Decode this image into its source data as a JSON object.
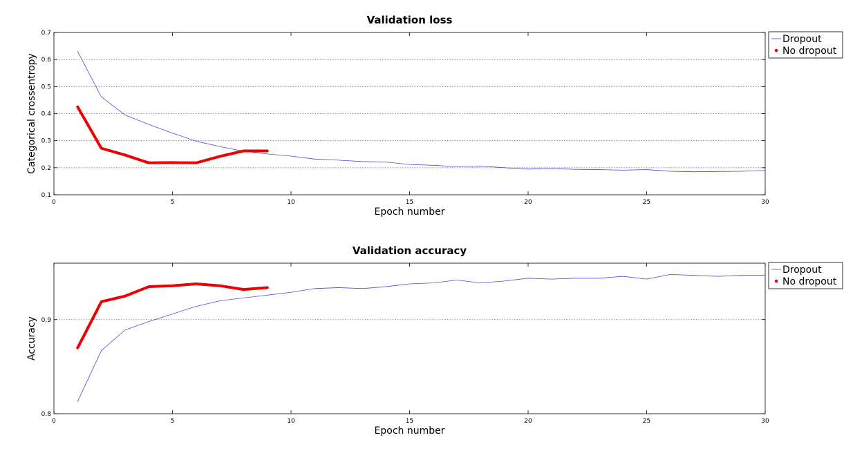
{
  "chart_data": [
    {
      "type": "line",
      "title": "Validation loss",
      "xlabel": "Epoch number",
      "ylabel": "Categorical crossentropy",
      "xlim": [
        0,
        30
      ],
      "ylim": [
        0.1,
        0.7
      ],
      "xticks": [
        0,
        5,
        10,
        15,
        20,
        25,
        30
      ],
      "yticks": [
        0.1,
        0.2,
        0.3,
        0.4,
        0.5,
        0.6,
        0.7
      ],
      "ytick_labels": [
        "0.1",
        "0.2",
        "0.3",
        "0.4",
        "0.5",
        "0.6",
        "0.7"
      ],
      "grid": "horizontal-dotted",
      "legend": "outside-top-right",
      "series": [
        {
          "name": "Dropout",
          "color": "#4a4ad8",
          "x": [
            1,
            2,
            3,
            4,
            5,
            6,
            7,
            8,
            9,
            10,
            11,
            12,
            13,
            14,
            15,
            16,
            17,
            18,
            19,
            20,
            21,
            22,
            23,
            24,
            25,
            26,
            27,
            28,
            29,
            30
          ],
          "values": [
            0.63,
            0.462,
            0.395,
            0.36,
            0.328,
            0.298,
            0.278,
            0.261,
            0.251,
            0.243,
            0.232,
            0.228,
            0.223,
            0.221,
            0.212,
            0.209,
            0.204,
            0.206,
            0.2,
            0.195,
            0.197,
            0.194,
            0.193,
            0.191,
            0.193,
            0.187,
            0.185,
            0.186,
            0.187,
            0.19
          ]
        },
        {
          "name": "No dropout",
          "color": "#ee0000",
          "x": [
            1,
            2,
            3,
            4,
            5,
            6,
            7,
            8,
            9
          ],
          "values": [
            0.425,
            0.272,
            0.247,
            0.218,
            0.219,
            0.218,
            0.242,
            0.262,
            0.262
          ]
        }
      ]
    },
    {
      "type": "line",
      "title": "Validation accuracy",
      "xlabel": "Epoch number",
      "ylabel": "Accuracy",
      "xlim": [
        0,
        30
      ],
      "ylim": [
        0.8,
        0.96
      ],
      "xticks": [
        0,
        5,
        10,
        15,
        20,
        25,
        30
      ],
      "yticks": [
        0.8,
        0.9
      ],
      "ytick_labels": [
        "0.8",
        "0.9"
      ],
      "grid": "horizontal-dotted",
      "legend": "outside-top-right",
      "series": [
        {
          "name": "Dropout",
          "color": "#4a4ad8",
          "x": [
            1,
            2,
            3,
            4,
            5,
            6,
            7,
            8,
            9,
            10,
            11,
            12,
            13,
            14,
            15,
            16,
            17,
            18,
            19,
            20,
            21,
            22,
            23,
            24,
            25,
            26,
            27,
            28,
            29,
            30
          ],
          "values": [
            0.813,
            0.867,
            0.889,
            0.898,
            0.906,
            0.914,
            0.92,
            0.923,
            0.926,
            0.929,
            0.933,
            0.934,
            0.933,
            0.935,
            0.938,
            0.939,
            0.942,
            0.939,
            0.941,
            0.944,
            0.943,
            0.944,
            0.944,
            0.946,
            0.943,
            0.948,
            0.947,
            0.946,
            0.947,
            0.947
          ]
        },
        {
          "name": "No dropout",
          "color": "#ee0000",
          "x": [
            1,
            2,
            3,
            4,
            5,
            6,
            7,
            8,
            9
          ],
          "values": [
            0.87,
            0.919,
            0.925,
            0.935,
            0.936,
            0.938,
            0.936,
            0.932,
            0.934
          ]
        }
      ]
    }
  ]
}
